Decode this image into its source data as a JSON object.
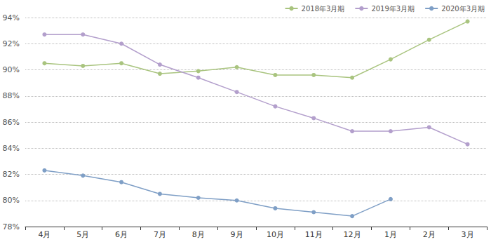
{
  "chart_data": {
    "type": "line",
    "categories": [
      "4月",
      "5月",
      "6月",
      "7月",
      "8月",
      "9月",
      "10月",
      "11月",
      "12月",
      "1月",
      "2月",
      "3月"
    ],
    "series": [
      {
        "name": "2018年3月期",
        "color": "#a9c47f",
        "values": [
          90.5,
          90.3,
          90.5,
          89.7,
          89.9,
          90.2,
          89.6,
          89.6,
          89.4,
          90.8,
          92.3,
          93.7
        ]
      },
      {
        "name": "2019年3月期",
        "color": "#b39fcc",
        "values": [
          92.7,
          92.7,
          92.0,
          90.4,
          89.4,
          88.3,
          87.2,
          86.3,
          85.3,
          85.3,
          85.6,
          84.3
        ]
      },
      {
        "name": "2020年3月期",
        "color": "#7f9fc6",
        "values": [
          82.3,
          81.9,
          81.4,
          80.5,
          80.2,
          80.0,
          79.4,
          79.1,
          78.8,
          80.1,
          null,
          null
        ]
      }
    ],
    "ylim": [
      78,
      94
    ],
    "yticks": [
      {
        "value": 78,
        "label": "78%"
      },
      {
        "value": 80,
        "label": "80%"
      },
      {
        "value": 82,
        "label": "82%"
      },
      {
        "value": 84,
        "label": "84%"
      },
      {
        "value": 86,
        "label": "86%"
      },
      {
        "value": 88,
        "label": "88%"
      },
      {
        "value": 90,
        "label": "90%"
      },
      {
        "value": 92,
        "label": "92%"
      },
      {
        "value": 94,
        "label": "94%"
      }
    ],
    "grid": true,
    "legend": "top-right",
    "marker": "circle"
  }
}
